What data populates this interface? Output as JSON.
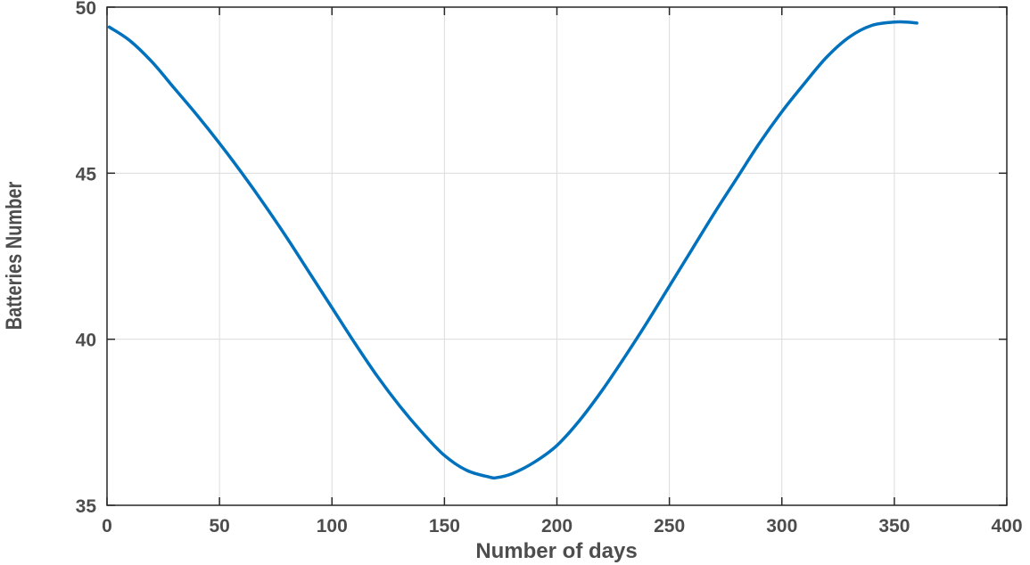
{
  "chart_data": {
    "type": "line",
    "title": "",
    "xlabel": "Number of days",
    "ylabel": "Batteries Number",
    "xlim": [
      0,
      400
    ],
    "ylim": [
      35,
      50
    ],
    "xticks": [
      0,
      50,
      100,
      150,
      200,
      250,
      300,
      350,
      400
    ],
    "yticks": [
      35,
      40,
      45,
      50
    ],
    "grid": true,
    "line_color": "#0072BD",
    "series": [
      {
        "x": [
          1,
          10,
          20,
          30,
          40,
          50,
          60,
          70,
          80,
          90,
          100,
          110,
          120,
          130,
          140,
          150,
          160,
          170,
          173,
          180,
          190,
          200,
          210,
          220,
          230,
          240,
          250,
          260,
          270,
          280,
          290,
          300,
          310,
          320,
          330,
          340,
          350,
          355,
          360
        ],
        "y": [
          49.4,
          49.0,
          48.35,
          47.55,
          46.75,
          45.9,
          45.0,
          44.05,
          43.05,
          42.0,
          40.95,
          39.9,
          38.9,
          38.0,
          37.2,
          36.5,
          36.05,
          35.85,
          35.83,
          35.95,
          36.3,
          36.8,
          37.55,
          38.45,
          39.45,
          40.5,
          41.6,
          42.7,
          43.8,
          44.85,
          45.9,
          46.85,
          47.7,
          48.5,
          49.1,
          49.45,
          49.55,
          49.55,
          49.52
        ]
      }
    ]
  }
}
